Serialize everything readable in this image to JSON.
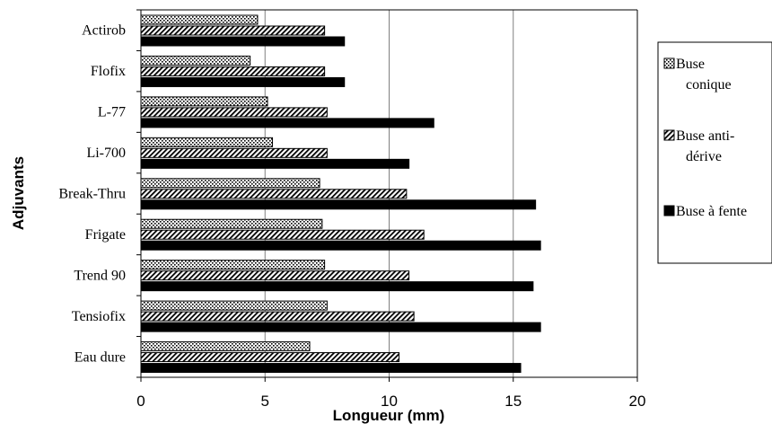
{
  "chart_data": {
    "type": "bar",
    "orientation": "horizontal",
    "categories": [
      "Actirob",
      "Flofix",
      "L-77",
      "Li-700",
      "Break-Thru",
      "Frigate",
      "Trend 90",
      "Tensiofix",
      "Eau dure"
    ],
    "series": [
      {
        "name": "Buse conique",
        "legend_lines": [
          "Buse",
          "conique"
        ],
        "pattern": "dotted",
        "values": [
          4.7,
          4.4,
          5.1,
          5.3,
          7.2,
          7.3,
          7.4,
          7.5,
          6.8
        ]
      },
      {
        "name": "Buse anti-dérive",
        "legend_lines": [
          "Buse anti-",
          "dérive"
        ],
        "pattern": "hatched",
        "values": [
          7.4,
          7.4,
          7.5,
          7.5,
          10.7,
          11.4,
          10.8,
          11.0,
          10.4
        ]
      },
      {
        "name": "Buse à fente",
        "legend_lines": [
          "Buse à fente"
        ],
        "pattern": "solid",
        "values": [
          8.2,
          8.2,
          11.8,
          10.8,
          15.9,
          16.1,
          15.8,
          16.1,
          15.3
        ]
      }
    ],
    "xlabel": "Longueur (mm)",
    "ylabel": "Adjuvants",
    "xlim": [
      0,
      20
    ],
    "xticks": [
      "0",
      "5",
      "10",
      "15",
      "20"
    ],
    "grid": "vertical",
    "legend_position": "right"
  }
}
